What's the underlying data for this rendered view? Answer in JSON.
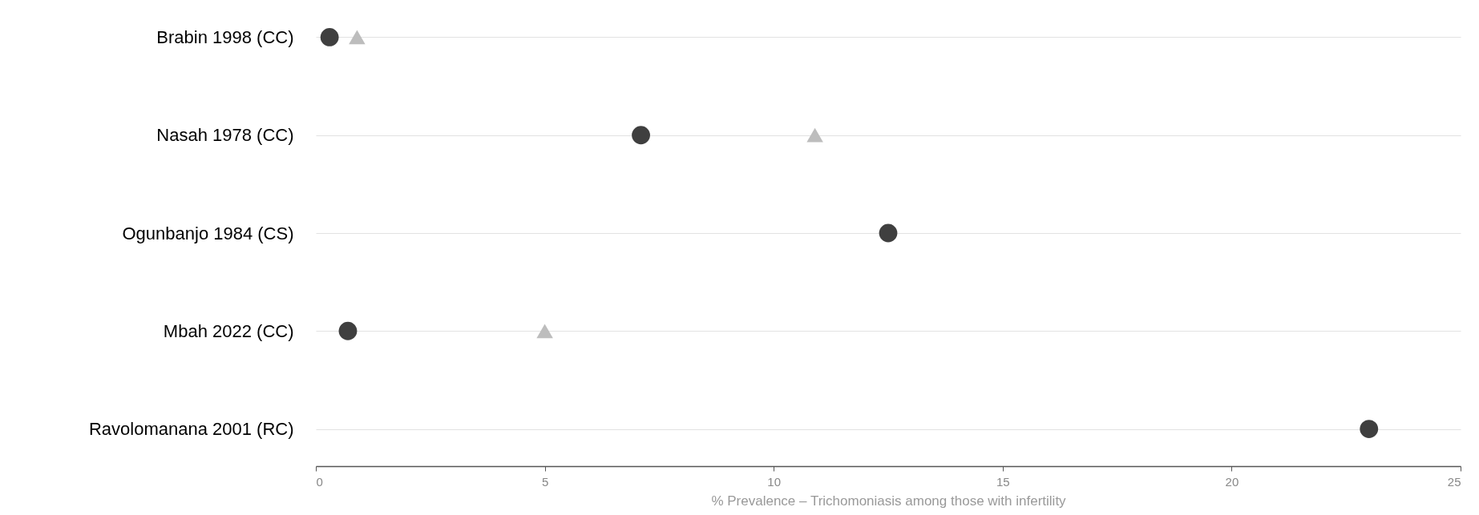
{
  "chart_data": {
    "type": "scatter",
    "xlabel": "% Prevalence – Trichomoniasis among those with infertility",
    "categories": [
      "Brabin 1998 (CC)",
      "Nasah 1978 (CC)",
      "Ogunbanjo 1984 (CS)",
      "Mbah 2022 (CC)",
      "Ravolomanana 2001 (RC)"
    ],
    "series": [
      {
        "color": "#3f3f3f",
        "marker": "circle",
        "values": [
          0.3,
          7.1,
          12.5,
          0.7,
          23.0
        ]
      },
      {
        "color": "#bdbdbd",
        "marker": "triangle",
        "values": [
          0.9,
          10.9,
          null,
          5.0,
          null
        ]
      }
    ],
    "xlim": [
      0,
      25
    ],
    "xticks": [
      0,
      5,
      10,
      15,
      20,
      25
    ],
    "grid": "y",
    "orientation": "horizontal"
  }
}
